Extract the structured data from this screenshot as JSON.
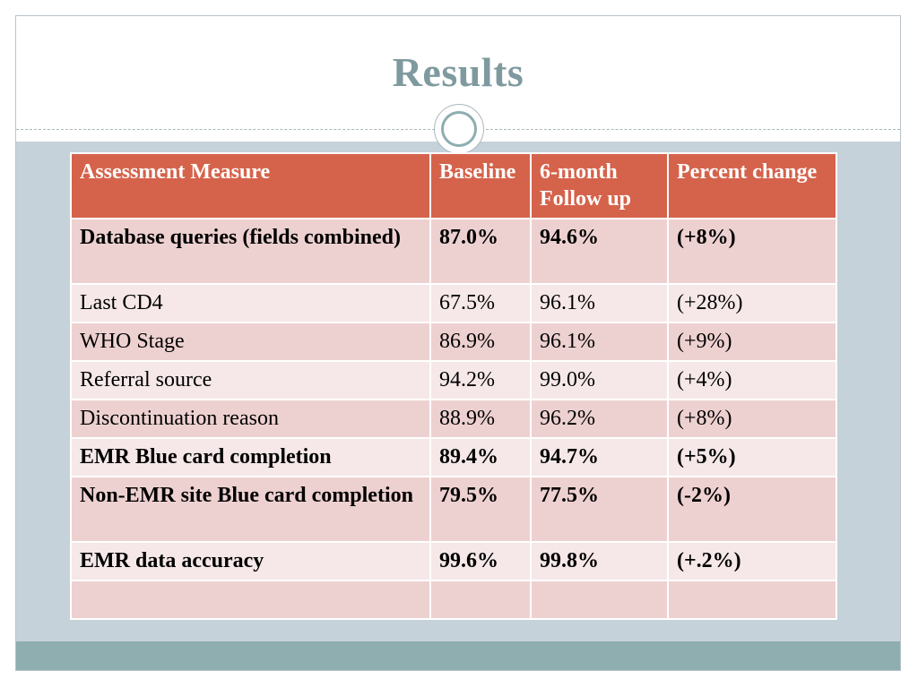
{
  "slide": {
    "title": "Results"
  },
  "table": {
    "headers": [
      "Assessment Measure",
      "Baseline",
      "6-month Follow up",
      "Percent change"
    ],
    "rows": [
      {
        "measure": "Database queries (fields combined)",
        "baseline": "87.0%",
        "followup": "94.6%",
        "change": "(+8%)",
        "bold": true,
        "indent": false
      },
      {
        "measure": "Last CD4",
        "baseline": "67.5%",
        "followup": "96.1%",
        "change": "(+28%)",
        "bold": false,
        "indent": true
      },
      {
        "measure": "WHO Stage",
        "baseline": "86.9%",
        "followup": "96.1%",
        "change": "(+9%)",
        "bold": false,
        "indent": true
      },
      {
        "measure": "Referral source",
        "baseline": "94.2%",
        "followup": "99.0%",
        "change": "(+4%)",
        "bold": false,
        "indent": true
      },
      {
        "measure": "Discontinuation reason",
        "baseline": "88.9%",
        "followup": "96.2%",
        "change": "(+8%)",
        "bold": false,
        "indent": true
      },
      {
        "measure": "EMR Blue card completion",
        "baseline": "89.4%",
        "followup": "94.7%",
        "change": "(+5%)",
        "bold": true,
        "indent": false
      },
      {
        "measure": "Non-EMR site Blue card completion",
        "baseline": "79.5%",
        "followup": "77.5%",
        "change": "(-2%)",
        "bold": true,
        "indent": false
      },
      {
        "measure": "EMR data accuracy",
        "baseline": "99.6%",
        "followup": "99.8%",
        "change": "(+.2%)",
        "bold": true,
        "indent": false
      },
      {
        "measure": "",
        "baseline": "",
        "followup": "",
        "change": "",
        "bold": false,
        "indent": false
      }
    ]
  },
  "colors": {
    "title": "#7f9a9f",
    "header_bg": "#d5634b",
    "row_odd_bg": "#edd1d0",
    "row_even_bg": "#f6e8e8",
    "content_bg": "#c6d2d9",
    "footer_bg": "#8eaeb0"
  }
}
